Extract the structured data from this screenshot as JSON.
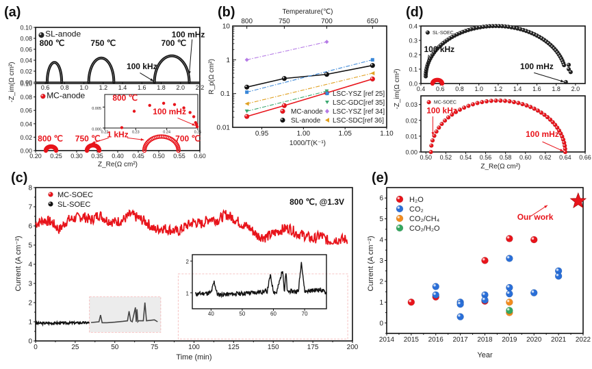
{
  "chart_data": [
    {
      "id": "a",
      "panel_label": "(a)",
      "type": "scatter",
      "xlabel": "Z_Re(Ω cm²)",
      "ylabel": "-Z_im(Ω cm²)",
      "subplots": [
        {
          "name": "top",
          "legend": "SL-anode",
          "color": "#111111",
          "xlim": [
            0.5,
            2.2
          ],
          "ylim": [
            0.0,
            0.1
          ],
          "xticks": [
            0.6,
            0.8,
            1.0,
            1.2,
            1.4,
            1.6,
            1.8,
            2.0,
            2.2
          ],
          "yticks": [
            0.0,
            0.02,
            0.04,
            0.06,
            0.08,
            0.1
          ],
          "arcs": [
            {
              "label": "800 ℃",
              "x_start": 0.62,
              "x_end": 0.77,
              "peak": 0.036,
              "x_peak": 0.67
            },
            {
              "label": "750 ℃",
              "x_start": 1.05,
              "x_end": 1.31,
              "peak": 0.044,
              "x_peak": 1.2
            },
            {
              "label": "700 ℃",
              "x_start": 1.73,
              "x_end": 2.09,
              "peak": 0.048,
              "x_peak": 1.93
            }
          ],
          "annotations": [
            {
              "text": "100 mHz",
              "x": 2.09,
              "y": 0.012
            },
            {
              "text": "100 kHz",
              "x": 1.73,
              "y": 0.0
            }
          ]
        },
        {
          "name": "bottom",
          "legend": "MC-anode",
          "color": "#e8141b",
          "xlim": [
            0.2,
            0.6
          ],
          "ylim": [
            0.0,
            0.1
          ],
          "xticks": [
            0.2,
            0.25,
            0.3,
            0.35,
            0.4,
            0.45,
            0.5,
            0.55,
            0.6
          ],
          "yticks": [
            0.0,
            0.02,
            0.04,
            0.06,
            0.08,
            0.1
          ],
          "arcs": [
            {
              "label": "800 ℃",
              "x_start": 0.225,
              "x_end": 0.25,
              "peak": 0.006,
              "x_peak": 0.238
            },
            {
              "label": "750 ℃",
              "x_start": 0.325,
              "x_end": 0.355,
              "peak": 0.008,
              "x_peak": 0.34
            },
            {
              "label": "700 ℃",
              "x_start": 0.465,
              "x_end": 0.548,
              "peak": 0.021,
              "x_peak": 0.505
            }
          ],
          "annotations": [
            {
              "text": "1 kHz",
              "x": 0.335,
              "y": 0.012
            },
            {
              "text": "1 kHz",
              "x": 0.465,
              "y": 0.016
            }
          ],
          "inset": {
            "title": "800 ℃",
            "xlim": [
              0.22,
              0.25
            ],
            "ylim": [
              0.0,
              0.008
            ],
            "xticks": [
              0.22,
              0.23,
              0.24,
              0.25
            ],
            "yticks": [
              0.0,
              0.005
            ],
            "points": [
              [
                0.2255,
                0.0001
              ],
              [
                0.2295,
                0.004
              ],
              [
                0.2345,
                0.0054
              ],
              [
                0.239,
                0.0059
              ],
              [
                0.2425,
                0.0056
              ],
              [
                0.2455,
                0.0048
              ],
              [
                0.2475,
                0.0037
              ],
              [
                0.2487,
                0.0027
              ],
              [
                0.2493,
                0.0013
              ],
              [
                0.2496,
                0.0008
              ],
              [
                0.2498,
                0.0003
              ]
            ],
            "annotation": "100 mHz"
          }
        }
      ]
    },
    {
      "id": "b",
      "panel_label": "(b)",
      "type": "line",
      "xlabel": "1000/T(K⁻¹)",
      "ylabel": "R_p(Ω cm²)",
      "top_xlabel": "Temperature(℃)",
      "top_xticks": [
        "800",
        "750",
        "700",
        "650"
      ],
      "xlim": [
        0.915,
        1.1
      ],
      "ylim_log": [
        0.01,
        10
      ],
      "xticks": [
        0.95,
        1.0,
        1.05,
        1.1
      ],
      "yticks": [
        "0.01",
        "0.1",
        "1",
        "10"
      ],
      "x": [
        0.932,
        0.977,
        1.028,
        1.083
      ],
      "series": [
        {
          "name": "MC-anode",
          "color": "#e8141b",
          "style": "solid",
          "marker": "circle",
          "values": [
            0.021,
            0.044,
            0.105,
            0.27
          ]
        },
        {
          "name": "SL-anode",
          "color": "#111111",
          "style": "solid",
          "marker": "circle",
          "values": [
            0.155,
            0.28,
            0.37,
            0.68
          ]
        },
        {
          "name": "LSC-YSZ [ref 25]",
          "color": "#3a87d8",
          "style": "dashdot",
          "marker": "square",
          "values": [
            0.11,
            null,
            null,
            1.0
          ]
        },
        {
          "name": "LSC-GDC[ref 35]",
          "color": "#3aa870",
          "style": "dashdot",
          "marker": "triangle-down",
          "values": [
            0.03,
            null,
            0.118,
            null
          ]
        },
        {
          "name": "LSC-YSZ [ref 34]",
          "color": "#b57be6",
          "style": "dashdot",
          "marker": "diamond",
          "values": [
            1.0,
            null,
            3.4,
            null
          ]
        },
        {
          "name": "LSC-SDC[ref 36]",
          "color": "#e0a020",
          "style": "dashdot",
          "marker": "triangle-left",
          "values": [
            0.05,
            null,
            null,
            0.4
          ]
        }
      ]
    },
    {
      "id": "c",
      "panel_label": "(c)",
      "type": "line",
      "xlabel": "Time (min)",
      "ylabel": "Current (A cm⁻²)",
      "annotation": "800 ℃, @1.3V",
      "xlim": [
        0,
        200
      ],
      "ylim": [
        0,
        8
      ],
      "xticks": [
        0,
        25,
        50,
        75,
        100,
        125,
        150,
        175,
        200
      ],
      "yticks": [
        0,
        1,
        2,
        3,
        4,
        5,
        6,
        7,
        8
      ],
      "series": [
        {
          "name": "MC-SOEC",
          "color": "#e8141b",
          "x": [
            0,
            5,
            10,
            15,
            20,
            25,
            30,
            35,
            40,
            45,
            50,
            55,
            60,
            65,
            70,
            75,
            80,
            85,
            90,
            95,
            100,
            105,
            110,
            115,
            120,
            125,
            130,
            135,
            140,
            145,
            150,
            155,
            160,
            165,
            170,
            175,
            180,
            185,
            190,
            195,
            197
          ],
          "values": [
            6.1,
            6.3,
            6.2,
            5.8,
            6.3,
            6.4,
            6.5,
            6.3,
            6.6,
            6.3,
            6.2,
            6.3,
            6.6,
            6.4,
            6.2,
            5.8,
            5.9,
            5.8,
            5.7,
            6.0,
            6.2,
            6.1,
            6.4,
            6.3,
            6.6,
            6.4,
            6.1,
            5.9,
            5.5,
            5.4,
            5.6,
            5.8,
            5.9,
            5.6,
            5.5,
            5.3,
            5.5,
            5.2,
            5.3,
            5.3,
            5.3
          ]
        },
        {
          "name": "SL-SOEC",
          "color": "#111111",
          "x": [
            0,
            5,
            10,
            15,
            20,
            25,
            30,
            35,
            40,
            41,
            42,
            45,
            50,
            55,
            58,
            59,
            60,
            61,
            63,
            63.5,
            64,
            64.5,
            65,
            68,
            69,
            70,
            75,
            77
          ],
          "values": [
            0.92,
            0.93,
            0.9,
            0.93,
            0.94,
            0.95,
            0.97,
            0.96,
            1.0,
            1.35,
            0.95,
            0.95,
            0.98,
            1.02,
            1.05,
            1.55,
            1.05,
            1.0,
            1.75,
            1.0,
            1.65,
            1.0,
            1.05,
            1.05,
            2.0,
            1.05,
            1.1,
            1.0
          ]
        }
      ],
      "inset": {
        "xlim": [
          34,
          77
        ],
        "ylim": [
          0.5,
          2.2
        ],
        "xticks": [
          40,
          50,
          60,
          70
        ],
        "yticks": [
          1,
          2
        ]
      }
    },
    {
      "id": "d",
      "panel_label": "(d)",
      "type": "scatter",
      "xlabel": "Z_Re(Ω cm²)",
      "ylabel": "-Z_im(Ω cm²)",
      "subplots": [
        {
          "name": "top",
          "legend": "SL-SOEC",
          "color": "#111111",
          "xlim": [
            0.4,
            2.1
          ],
          "ylim": [
            0.0,
            0.4
          ],
          "xticks": [
            0.4,
            0.6,
            0.8,
            1.0,
            1.2,
            1.4,
            1.6,
            1.8,
            2.0
          ],
          "yticks": [
            0.0,
            0.1,
            0.2,
            0.3,
            0.4
          ],
          "arc": {
            "x_start": 0.45,
            "x_end": 1.9,
            "peak": 0.35,
            "x_peak": 1.33,
            "y_start": 0.05
          },
          "annotations": [
            {
              "text": "100 kHz"
            },
            {
              "text": "100 mHz"
            }
          ]
        },
        {
          "name": "bottom",
          "legend": "MC-SOEC",
          "color": "#e8141b",
          "xlim": [
            0.495,
            0.66
          ],
          "ylim": [
            0.0,
            0.035
          ],
          "xticks": [
            0.5,
            0.52,
            0.54,
            0.56,
            0.58,
            0.6,
            0.62,
            0.64,
            0.66
          ],
          "yticks": [
            0.0,
            0.01,
            0.02,
            0.03
          ],
          "arc": {
            "x_start": 0.505,
            "x_end": 0.64,
            "peak": 0.0325,
            "x_peak": 0.573
          },
          "annotations": [
            {
              "text": "100 kHz"
            },
            {
              "text": "100 mHz"
            }
          ]
        }
      ]
    },
    {
      "id": "e",
      "panel_label": "(e)",
      "type": "scatter",
      "xlabel": "Year",
      "ylabel": "Current (A cm⁻²)",
      "xlim": [
        2014,
        2022
      ],
      "ylim": [
        -0.5,
        6.5
      ],
      "xticks": [
        2014,
        2015,
        2016,
        2017,
        2018,
        2019,
        2020,
        2021,
        2022
      ],
      "yticks": [
        0,
        1,
        2,
        3,
        4,
        5,
        6
      ],
      "annotation": "Our work",
      "highlight": {
        "x": 2021.8,
        "y": 5.85,
        "marker": "star",
        "color": "#e8141b"
      },
      "series": [
        {
          "name": "H₂O",
          "color": "#e8141b",
          "points": [
            [
              2015,
              1.0
            ],
            [
              2016,
              1.25
            ],
            [
              2018,
              3.0
            ],
            [
              2018,
              1.05
            ],
            [
              2019,
              4.05
            ],
            [
              2020,
              4.0
            ]
          ]
        },
        {
          "name": "CO₂",
          "color": "#2a6fd8",
          "points": [
            [
              2016,
              1.75
            ],
            [
              2016,
              1.35
            ],
            [
              2017,
              1.0
            ],
            [
              2017,
              0.9
            ],
            [
              2017,
              0.3
            ],
            [
              2018,
              1.35
            ],
            [
              2018,
              1.1
            ],
            [
              2019,
              3.1
            ],
            [
              2019,
              1.7
            ],
            [
              2019,
              1.4
            ],
            [
              2020,
              1.45
            ],
            [
              2021,
              2.5
            ],
            [
              2021,
              2.25
            ]
          ]
        },
        {
          "name": "CO₂/CH₄",
          "color": "#f28c1e",
          "points": [
            [
              2019,
              1.0
            ],
            [
              2019,
              0.5
            ]
          ]
        },
        {
          "name": "CO₂/H₂O",
          "color": "#35a860",
          "points": [
            [
              2019,
              0.6
            ]
          ]
        }
      ]
    }
  ]
}
